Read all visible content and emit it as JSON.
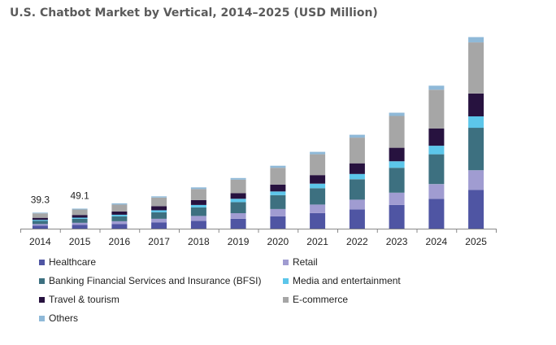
{
  "chart_data": {
    "type": "bar",
    "stacked": true,
    "title": "U.S. Chatbot Market by Vertical, 2014–2025 (USD Million)",
    "xlabel": "",
    "ylabel": "",
    "grid": false,
    "categories": [
      "2014",
      "2015",
      "2016",
      "2017",
      "2018",
      "2019",
      "2020",
      "2021",
      "2022",
      "2023",
      "2024",
      "2025"
    ],
    "ylim": [
      0,
      520
    ],
    "series": [
      {
        "name": "Healthcare",
        "color": "#4f55a3",
        "values": [
          7.0,
          9.0,
          11,
          15,
          19,
          24,
          30,
          38,
          47,
          58,
          73,
          95
        ]
      },
      {
        "name": "Retail",
        "color": "#a09cd1",
        "values": [
          4.5,
          5.5,
          7,
          9,
          12,
          14,
          18,
          21,
          24,
          30,
          36,
          48
        ]
      },
      {
        "name": "Banking Financial Services and Insurance (BFSI)",
        "color": "#3d7080",
        "values": [
          7.5,
          9.5,
          12,
          16,
          21,
          27,
          34,
          40,
          50,
          61,
          73,
          104
        ]
      },
      {
        "name": "Media and entertainment",
        "color": "#5cc6ea",
        "values": [
          2.5,
          3.0,
          4,
          5,
          6,
          8,
          9,
          11,
          13,
          16,
          21,
          28
        ]
      },
      {
        "name": "Travel & tourism",
        "color": "#27123f",
        "values": [
          5.0,
          6.5,
          8,
          10,
          12,
          14,
          17,
          21,
          26,
          33,
          42,
          56
        ]
      },
      {
        "name": "E-commerce",
        "color": "#a6a6a6",
        "values": [
          11.0,
          13.5,
          17,
          21,
          27,
          33,
          41,
          51,
          63,
          78,
          95,
          125
        ]
      },
      {
        "name": "Others",
        "color": "#8fb9d8",
        "values": [
          1.8,
          2.1,
          3,
          3,
          4,
          4,
          5,
          6,
          7,
          8,
          10,
          13
        ]
      }
    ],
    "data_labels": [
      {
        "category": "2014",
        "text": "39.3"
      },
      {
        "category": "2015",
        "text": "49.1"
      }
    ],
    "legend_position": "bottom"
  }
}
